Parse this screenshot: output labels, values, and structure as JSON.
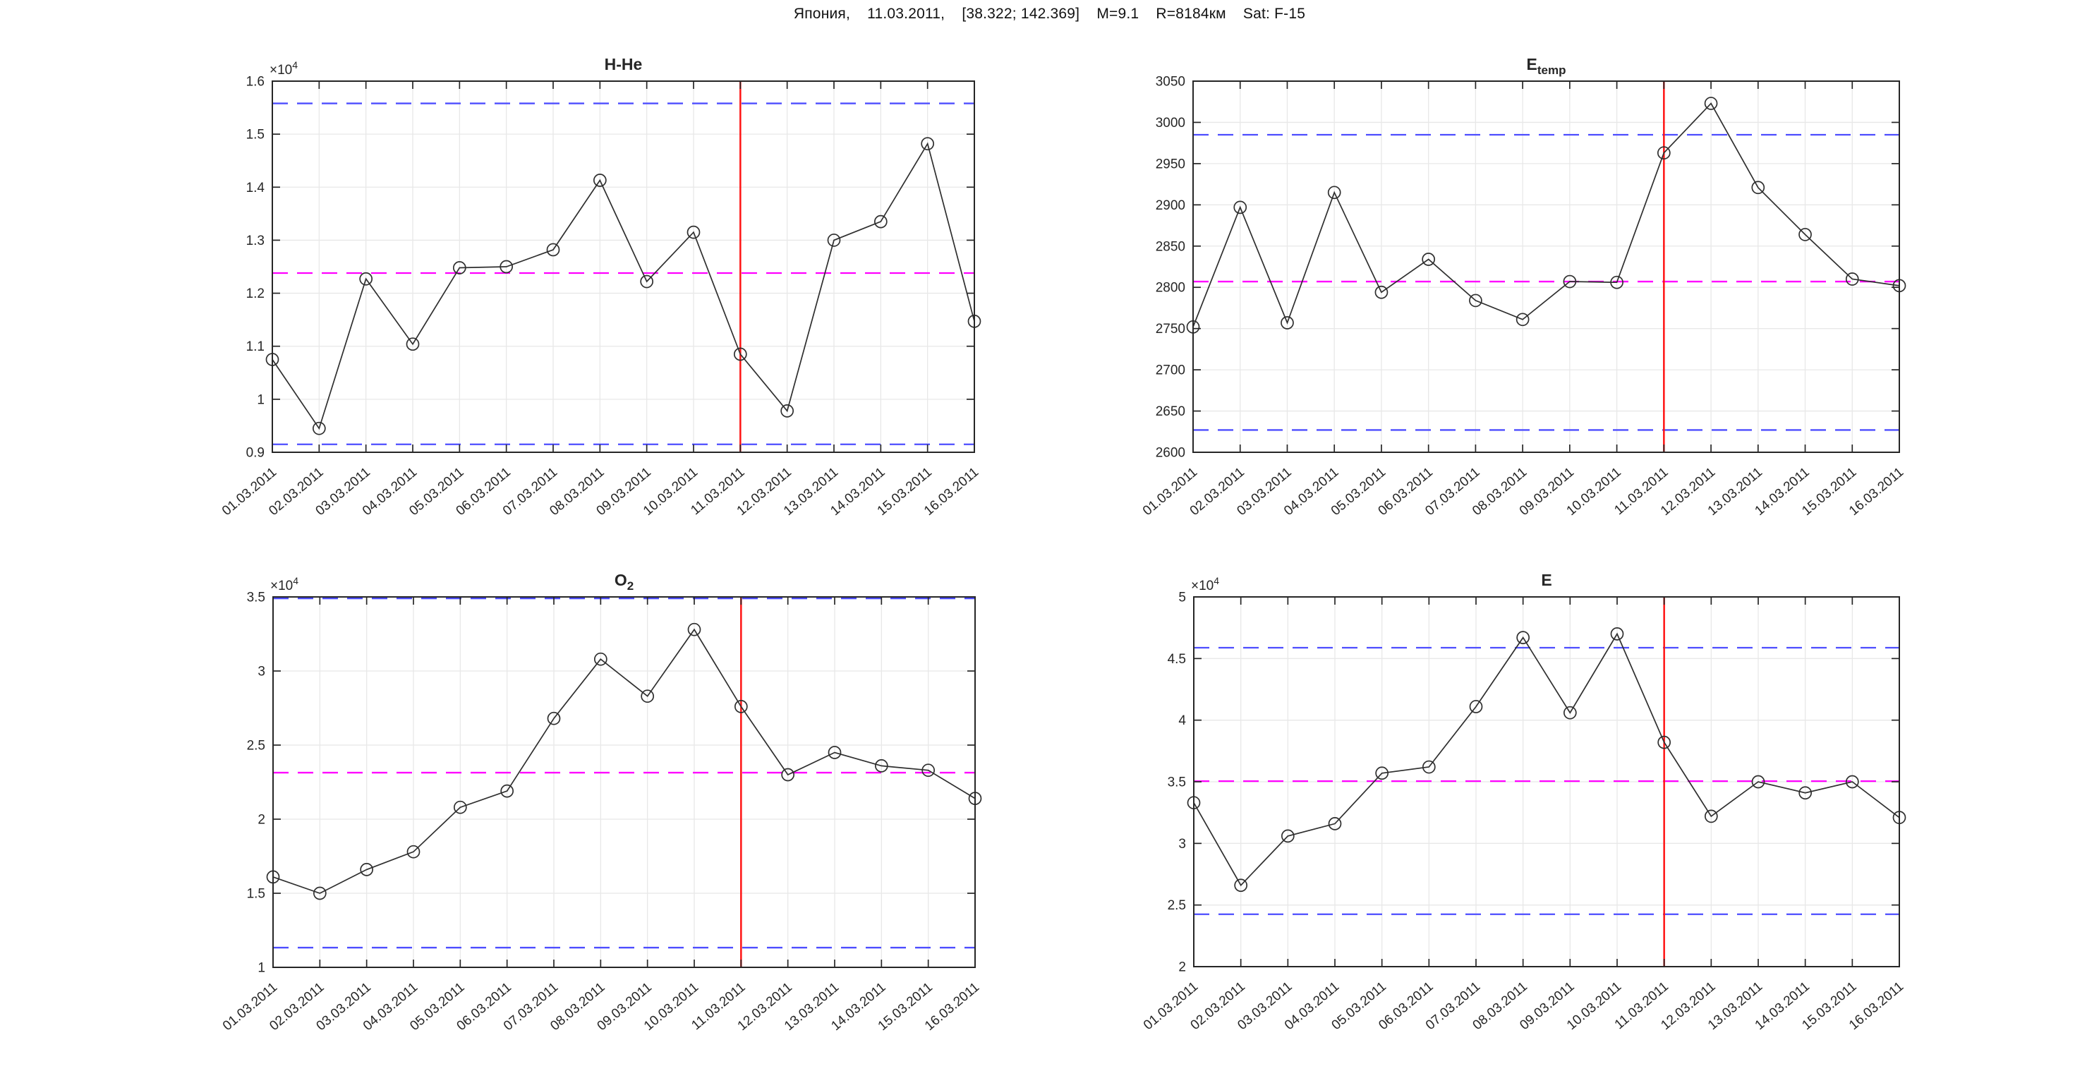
{
  "header": {
    "title": "Япония,    11.03.2011,    [38.322; 142.369]    M=9.1    R=8184км    Sat: F-15"
  },
  "colors": {
    "bound_line": "#4d4dff",
    "mean_line": "#ff00ff",
    "event_line": "#ff1414",
    "series_line": "#2f2f2f",
    "marker_edge": "#2f2f2f",
    "grid": "#e8e8e8",
    "axis": "#262626",
    "text": "#262626",
    "background": "#ffffff"
  },
  "event_date": "11.03.2011",
  "categories": [
    "01.03.2011",
    "02.03.2011",
    "03.03.2011",
    "04.03.2011",
    "05.03.2011",
    "06.03.2011",
    "07.03.2011",
    "08.03.2011",
    "09.03.2011",
    "10.03.2011",
    "11.03.2011",
    "12.03.2011",
    "13.03.2011",
    "14.03.2011",
    "15.03.2011",
    "16.03.2011"
  ],
  "chart_data": [
    {
      "id": "h-he",
      "type": "line",
      "title": "H-He",
      "title_sub": "",
      "exponent_label": "×10",
      "exponent_power": "4",
      "ylim": [
        9000,
        16000
      ],
      "yticks": [
        {
          "v": 9000,
          "label": "0.9"
        },
        {
          "v": 10000,
          "label": "1"
        },
        {
          "v": 11000,
          "label": "1.1"
        },
        {
          "v": 12000,
          "label": "1.2"
        },
        {
          "v": 13000,
          "label": "1.3"
        },
        {
          "v": 14000,
          "label": "1.4"
        },
        {
          "v": 15000,
          "label": "1.5"
        },
        {
          "v": 16000,
          "label": "1.6"
        }
      ],
      "values": [
        10750,
        9450,
        12270,
        11040,
        12480,
        12500,
        12820,
        14130,
        12220,
        13150,
        10850,
        9780,
        13000,
        13350,
        14820,
        11470
      ],
      "upper_bound": 15580,
      "lower_bound": 9150,
      "mean": 12380
    },
    {
      "id": "e-temp",
      "type": "line",
      "title": "E",
      "title_sub": "temp",
      "exponent_label": "",
      "exponent_power": "",
      "ylim": [
        2600,
        3050
      ],
      "yticks": [
        {
          "v": 2600,
          "label": "2600"
        },
        {
          "v": 2650,
          "label": "2650"
        },
        {
          "v": 2700,
          "label": "2700"
        },
        {
          "v": 2750,
          "label": "2750"
        },
        {
          "v": 2800,
          "label": "2800"
        },
        {
          "v": 2850,
          "label": "2850"
        },
        {
          "v": 2900,
          "label": "2900"
        },
        {
          "v": 2950,
          "label": "2950"
        },
        {
          "v": 3000,
          "label": "3000"
        },
        {
          "v": 3050,
          "label": "3050"
        }
      ],
      "values": [
        2752,
        2897,
        2757,
        2915,
        2794,
        2834,
        2784,
        2761,
        2807,
        2806,
        2963,
        3023,
        2921,
        2864,
        2810,
        2802
      ],
      "upper_bound": 2985,
      "lower_bound": 2627,
      "mean": 2807
    },
    {
      "id": "o2",
      "type": "line",
      "title": "O",
      "title_sub": "2",
      "exponent_label": "×10",
      "exponent_power": "4",
      "ylim": [
        10000,
        35000
      ],
      "yticks": [
        {
          "v": 10000,
          "label": "1"
        },
        {
          "v": 15000,
          "label": "1.5"
        },
        {
          "v": 20000,
          "label": "2"
        },
        {
          "v": 25000,
          "label": "2.5"
        },
        {
          "v": 30000,
          "label": "3"
        },
        {
          "v": 35000,
          "label": "3.5"
        }
      ],
      "values": [
        16100,
        15000,
        16600,
        17800,
        20800,
        21900,
        26800,
        30800,
        28300,
        32800,
        27600,
        23000,
        24500,
        23600,
        23300,
        21400
      ],
      "upper_bound": 34900,
      "lower_bound": 11330,
      "mean": 23140
    },
    {
      "id": "e",
      "type": "line",
      "title": "E",
      "title_sub": "",
      "exponent_label": "×10",
      "exponent_power": "4",
      "ylim": [
        20000,
        50000
      ],
      "yticks": [
        {
          "v": 20000,
          "label": "2"
        },
        {
          "v": 25000,
          "label": "2.5"
        },
        {
          "v": 30000,
          "label": "3"
        },
        {
          "v": 35000,
          "label": "3.5"
        },
        {
          "v": 40000,
          "label": "4"
        },
        {
          "v": 45000,
          "label": "4.5"
        },
        {
          "v": 50000,
          "label": "5"
        }
      ],
      "values": [
        33300,
        26600,
        30600,
        31600,
        35700,
        36200,
        41100,
        46700,
        40600,
        47000,
        38200,
        32200,
        35000,
        34100,
        35000,
        32100
      ],
      "upper_bound": 45880,
      "lower_bound": 24250,
      "mean": 35050
    }
  ]
}
